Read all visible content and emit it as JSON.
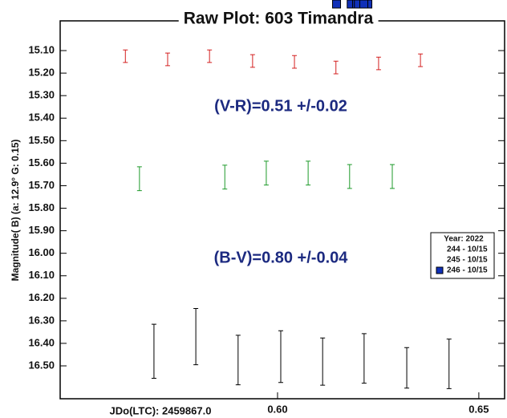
{
  "chart_data": {
    "type": "scatter",
    "title": "Raw Plot: 603 Timandra",
    "xlabel": "JDo(LTC): 2459867.0",
    "ylabel": "Magnitude( B)   (a: 12.9°  G: 0.15)",
    "annotations": [
      "(V-R)=0.51 +/-0.02",
      "(B-V)=0.80 +/-0.04"
    ],
    "annotation_color": "#1c2a80",
    "legend_title": "Year: 2022",
    "legend_position": "right",
    "xlim": [
      0.546,
      0.6564
    ],
    "ylim": [
      14.968,
      16.646
    ],
    "y_inverted": true,
    "xticks": [
      {
        "value": 0.6,
        "label": "0.60"
      },
      {
        "value": 0.65,
        "label": "0.65"
      }
    ],
    "yticks": [
      {
        "value": 15.1,
        "label": "15.10"
      },
      {
        "value": 15.2,
        "label": "15.20"
      },
      {
        "value": 15.3,
        "label": "15.30"
      },
      {
        "value": 15.4,
        "label": "15.40"
      },
      {
        "value": 15.5,
        "label": "15.50"
      },
      {
        "value": 15.6,
        "label": "15.60"
      },
      {
        "value": 15.7,
        "label": "15.70"
      },
      {
        "value": 15.8,
        "label": "15.80"
      },
      {
        "value": 15.9,
        "label": "15.90"
      },
      {
        "value": 16.0,
        "label": "16.00"
      },
      {
        "value": 16.1,
        "label": "16.10"
      },
      {
        "value": 16.2,
        "label": "16.20"
      },
      {
        "value": 16.3,
        "label": "16.30"
      },
      {
        "value": 16.4,
        "label": "16.40"
      },
      {
        "value": 16.5,
        "label": "16.50"
      }
    ],
    "series": [
      {
        "name": "244 - 10/15",
        "color": "#d42020",
        "error_color": "#d42020",
        "marker": "diamond",
        "x": [
          0.5622,
          0.5727,
          0.5831,
          0.5938,
          0.6042,
          0.6145,
          0.6251,
          0.6355
        ],
        "values": [
          15.125,
          15.139,
          15.125,
          15.146,
          15.15,
          15.175,
          15.157,
          15.143
        ],
        "errors": [
          0.028,
          0.028,
          0.028,
          0.028,
          0.028,
          0.028,
          0.028,
          0.028
        ]
      },
      {
        "name": "245 - 10/15",
        "color": "#1e9a2a",
        "error_color": "#1e9a2a",
        "marker": "plus",
        "x": [
          0.5657,
          0.5869,
          0.5972,
          0.6076,
          0.6179,
          0.6285
        ],
        "values": [
          15.669,
          15.662,
          15.644,
          15.644,
          15.659,
          15.659
        ],
        "errors": [
          0.053,
          0.053,
          0.053,
          0.053,
          0.053,
          0.053
        ]
      },
      {
        "name": "246 - 10/15",
        "color": "#1030b8",
        "error_color": "#000000",
        "marker": "square",
        "x": [
          0.5693,
          0.5797,
          0.5902,
          0.6008,
          0.6112,
          0.6215,
          0.6321,
          0.6426
        ],
        "values": [
          16.435,
          16.37,
          16.474,
          16.459,
          16.481,
          16.467,
          16.509,
          16.491
        ],
        "errors": [
          0.12,
          0.125,
          0.11,
          0.115,
          0.105,
          0.11,
          0.09,
          0.11
        ]
      }
    ]
  }
}
